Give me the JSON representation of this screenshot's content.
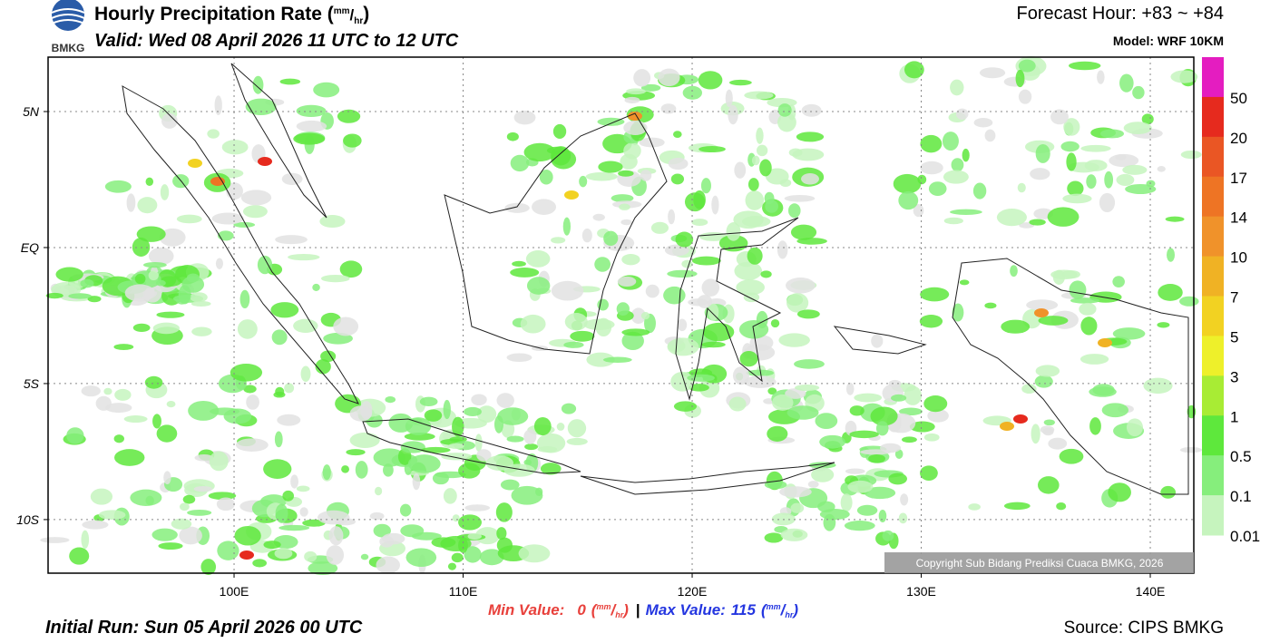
{
  "header": {
    "logo_text": "BMKG",
    "title": "Hourly Precipitation Rate (",
    "title_close": ")",
    "unit": {
      "num": "mm",
      "den": "hr"
    },
    "valid": "Valid: Wed 08 April 2026 11 UTC to 12 UTC",
    "forecast_hour": "Forecast Hour: +83 ~ +84",
    "model": "Model: WRF 10KM"
  },
  "map": {
    "xlim": [
      91.88,
      141.9
    ],
    "ylim": [
      -11.97,
      7
    ],
    "xticks": [
      {
        "value": 100,
        "label": "100E"
      },
      {
        "value": 110,
        "label": "110E"
      },
      {
        "value": 120,
        "label": "120E"
      },
      {
        "value": 130,
        "label": "130E"
      },
      {
        "value": 140,
        "label": "140E"
      }
    ],
    "yticks": [
      {
        "value": 5,
        "label": "5N"
      },
      {
        "value": 0,
        "label": "EQ"
      },
      {
        "value": -5,
        "label": "5S"
      },
      {
        "value": -10,
        "label": "10S"
      }
    ],
    "grid": true,
    "copyright": "Copyright Sub Bidang Prediksi Cuaca BMKG, 2026"
  },
  "legend": {
    "colors": [
      "#e41dc0",
      "#e62a1e",
      "#ea5624",
      "#ee7424",
      "#f0922a",
      "#f0b224",
      "#f2d222",
      "#eef02a",
      "#a8ec34",
      "#5ee83c",
      "#86ee7c",
      "#c6f4be",
      "#e2e2e2"
    ],
    "labels": [
      50,
      20,
      17,
      14,
      10,
      7,
      5,
      3,
      1,
      0.5,
      0.1,
      0.01
    ]
  },
  "footer": {
    "min_label": "Min Value:",
    "min_value": 0,
    "max_label": "Max Value:",
    "max_value": 115,
    "open": "(",
    "close": ")",
    "separator": "|",
    "initial_run": "Initial Run: Sun 05 April 2026 00 UTC",
    "source": "Source: CIPS BMKG"
  }
}
